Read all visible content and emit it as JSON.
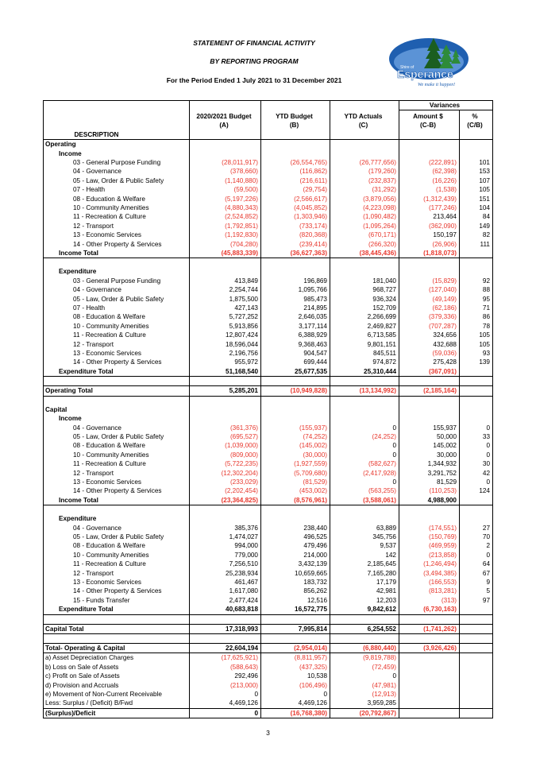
{
  "header": {
    "title": "STATEMENT OF FINANCIAL ACTIVITY",
    "subtitle": "BY REPORTING PROGRAM",
    "period": "For the Period Ended 1 July 2021 to 31 December 2021"
  },
  "logo": {
    "name": "Esperance",
    "prefix": "Shire of",
    "tagline": "We make it happen!",
    "colors": {
      "blue": "#1f5fb0",
      "green": "#2e8b3a",
      "dark_green": "#1b5e20"
    }
  },
  "colors": {
    "negative": "#e8382e",
    "text": "#000000"
  },
  "columns": {
    "variances_label": "Variances",
    "description": "DESCRIPTION",
    "budget": "2020/2021 Budget",
    "budget_code": "(A)",
    "ytd_budget": "YTD Budget",
    "ytd_budget_code": "(B)",
    "ytd_actuals": "YTD Actuals",
    "ytd_actuals_code": "(C)",
    "amount": "Amount $",
    "amount_code": "(C-B)",
    "pct": "%",
    "pct_code": "(C/B)"
  },
  "rows": [
    {
      "type": "section",
      "label": "Operating",
      "level": 0
    },
    {
      "type": "sub",
      "label": "Income",
      "level": 1
    },
    {
      "type": "item",
      "level": 2,
      "label": "03 - General Purpose Funding",
      "a": "(28,011,917)",
      "b": "(26,554,765)",
      "c": "(26,777,656)",
      "d": "(222,891)",
      "e": "101"
    },
    {
      "type": "item",
      "level": 2,
      "label": "04 - Governance",
      "a": "(378,660)",
      "b": "(116,862)",
      "c": "(179,260)",
      "d": "(62,398)",
      "e": "153"
    },
    {
      "type": "item",
      "level": 2,
      "label": "05 - Law, Order & Public Safety",
      "a": "(1,140,880)",
      "b": "(216,611)",
      "c": "(232,837)",
      "d": "(16,226)",
      "e": "107"
    },
    {
      "type": "item",
      "level": 2,
      "label": "07 - Health",
      "a": "(59,500)",
      "b": "(29,754)",
      "c": "(31,292)",
      "d": "(1,538)",
      "e": "105"
    },
    {
      "type": "item",
      "level": 2,
      "label": "08 - Education & Welfare",
      "a": "(5,197,226)",
      "b": "(2,566,617)",
      "c": "(3,879,056)",
      "d": "(1,312,439)",
      "e": "151"
    },
    {
      "type": "item",
      "level": 2,
      "label": "10 - Community Amenities",
      "a": "(4,880,343)",
      "b": "(4,045,852)",
      "c": "(4,223,098)",
      "d": "(177,246)",
      "e": "104"
    },
    {
      "type": "item",
      "level": 2,
      "label": "11 - Recreation & Culture",
      "a": "(2,524,852)",
      "b": "(1,303,946)",
      "c": "(1,090,482)",
      "d": "213,464",
      "e": "84"
    },
    {
      "type": "item",
      "level": 2,
      "label": "12 - Transport",
      "a": "(1,792,851)",
      "b": "(733,174)",
      "c": "(1,095,264)",
      "d": "(362,090)",
      "e": "149"
    },
    {
      "type": "item",
      "level": 2,
      "label": "13 - Economic Services",
      "a": "(1,192,830)",
      "b": "(820,368)",
      "c": "(670,171)",
      "d": "150,197",
      "e": "82"
    },
    {
      "type": "item",
      "level": 2,
      "label": "14 - Other Property & Services",
      "a": "(704,280)",
      "b": "(239,414)",
      "c": "(266,320)",
      "d": "(26,906)",
      "e": "111"
    },
    {
      "type": "total",
      "level": 1,
      "label": "Income Total",
      "a": "(45,883,339)",
      "b": "(36,627,363)",
      "c": "(38,445,436)",
      "d": "(1,818,073)",
      "e": ""
    },
    {
      "type": "gap"
    },
    {
      "type": "sub",
      "label": "Expenditure",
      "level": 1
    },
    {
      "type": "item",
      "level": 2,
      "label": "03 - General Purpose Funding",
      "a": "413,849",
      "b": "196,869",
      "c": "181,040",
      "d": "(15,829)",
      "e": "92"
    },
    {
      "type": "item",
      "level": 2,
      "label": "04 - Governance",
      "a": "2,254,744",
      "b": "1,095,766",
      "c": "968,727",
      "d": "(127,040)",
      "e": "88"
    },
    {
      "type": "item",
      "level": 2,
      "label": "05 - Law, Order & Public Safety",
      "a": "1,875,500",
      "b": "985,473",
      "c": "936,324",
      "d": "(49,149)",
      "e": "95"
    },
    {
      "type": "item",
      "level": 2,
      "label": "07 - Health",
      "a": "427,143",
      "b": "214,895",
      "c": "152,709",
      "d": "(62,186)",
      "e": "71"
    },
    {
      "type": "item",
      "level": 2,
      "label": "08 - Education & Welfare",
      "a": "5,727,252",
      "b": "2,646,035",
      "c": "2,266,699",
      "d": "(379,336)",
      "e": "86"
    },
    {
      "type": "item",
      "level": 2,
      "label": "10 - Community Amenities",
      "a": "5,913,856",
      "b": "3,177,114",
      "c": "2,469,827",
      "d": "(707,287)",
      "e": "78"
    },
    {
      "type": "item",
      "level": 2,
      "label": "11 - Recreation & Culture",
      "a": "12,807,424",
      "b": "6,388,929",
      "c": "6,713,585",
      "d": "324,656",
      "e": "105"
    },
    {
      "type": "item",
      "level": 2,
      "label": "12 - Transport",
      "a": "18,596,044",
      "b": "9,368,463",
      "c": "9,801,151",
      "d": "432,688",
      "e": "105"
    },
    {
      "type": "item",
      "level": 2,
      "label": "13 - Economic Services",
      "a": "2,196,756",
      "b": "904,547",
      "c": "845,511",
      "d": "(59,036)",
      "e": "93"
    },
    {
      "type": "item",
      "level": 2,
      "label": "14 - Other Property & Services",
      "a": "955,972",
      "b": "699,444",
      "c": "974,872",
      "d": "275,428",
      "e": "139"
    },
    {
      "type": "total",
      "level": 1,
      "label": "Expenditure Total",
      "a": "51,168,540",
      "b": "25,677,535",
      "c": "25,310,444",
      "d": "(367,091)",
      "e": ""
    },
    {
      "type": "gap"
    },
    {
      "type": "grand",
      "level": 0,
      "label": "Operating Total",
      "a": "5,285,201",
      "b": "(10,949,828)",
      "c": "(13,134,992)",
      "d": "(2,185,164)",
      "e": ""
    },
    {
      "type": "gap"
    },
    {
      "type": "section",
      "label": "Capital",
      "level": 0
    },
    {
      "type": "sub",
      "label": "Income",
      "level": 1
    },
    {
      "type": "item",
      "level": 2,
      "label": "04 - Governance",
      "a": "(361,376)",
      "b": "(155,937)",
      "c": "0",
      "d": "155,937",
      "e": "0"
    },
    {
      "type": "item",
      "level": 2,
      "label": "05 - Law, Order & Public Safety",
      "a": "(695,527)",
      "b": "(74,252)",
      "c": "(24,252)",
      "d": "50,000",
      "e": "33"
    },
    {
      "type": "item",
      "level": 2,
      "label": "08 - Education & Welfare",
      "a": "(1,039,000)",
      "b": "(145,002)",
      "c": "0",
      "d": "145,002",
      "e": "0"
    },
    {
      "type": "item",
      "level": 2,
      "label": "10 - Community Amenities",
      "a": "(809,000)",
      "b": "(30,000)",
      "c": "0",
      "d": "30,000",
      "e": "0"
    },
    {
      "type": "item",
      "level": 2,
      "label": "11 - Recreation & Culture",
      "a": "(5,722,235)",
      "b": "(1,927,559)",
      "c": "(582,627)",
      "d": "1,344,932",
      "e": "30"
    },
    {
      "type": "item",
      "level": 2,
      "label": "12 - Transport",
      "a": "(12,302,204)",
      "b": "(5,709,680)",
      "c": "(2,417,928)",
      "d": "3,291,752",
      "e": "42"
    },
    {
      "type": "item",
      "level": 2,
      "label": "13 - Economic Services",
      "a": "(233,029)",
      "b": "(81,529)",
      "c": "0",
      "d": "81,529",
      "e": "0"
    },
    {
      "type": "item",
      "level": 2,
      "label": "14 - Other Property & Services",
      "a": "(2,202,454)",
      "b": "(453,002)",
      "c": "(563,255)",
      "d": "(110,253)",
      "e": "124"
    },
    {
      "type": "total",
      "level": 1,
      "label": "Income Total",
      "a": "(23,364,825)",
      "b": "(8,576,961)",
      "c": "(3,588,061)",
      "d": "4,988,900",
      "e": ""
    },
    {
      "type": "gap"
    },
    {
      "type": "sub",
      "label": "Expenditure",
      "level": 1
    },
    {
      "type": "item",
      "level": 2,
      "label": "04 - Governance",
      "a": "385,376",
      "b": "238,440",
      "c": "63,889",
      "d": "(174,551)",
      "e": "27"
    },
    {
      "type": "item",
      "level": 2,
      "label": "05 - Law, Order & Public Safety",
      "a": "1,474,027",
      "b": "496,525",
      "c": "345,756",
      "d": "(150,769)",
      "e": "70"
    },
    {
      "type": "item",
      "level": 2,
      "label": "08 - Education & Welfare",
      "a": "994,000",
      "b": "479,496",
      "c": "9,537",
      "d": "(469,959)",
      "e": "2"
    },
    {
      "type": "item",
      "level": 2,
      "label": "10 - Community Amenities",
      "a": "779,000",
      "b": "214,000",
      "c": "142",
      "d": "(213,858)",
      "e": "0"
    },
    {
      "type": "item",
      "level": 2,
      "label": "11 - Recreation & Culture",
      "a": "7,256,510",
      "b": "3,432,139",
      "c": "2,185,645",
      "d": "(1,246,494)",
      "e": "64"
    },
    {
      "type": "item",
      "level": 2,
      "label": "12 - Transport",
      "a": "25,238,934",
      "b": "10,659,665",
      "c": "7,165,280",
      "d": "(3,494,385)",
      "e": "67"
    },
    {
      "type": "item",
      "level": 2,
      "label": "13 - Economic Services",
      "a": "461,467",
      "b": "183,732",
      "c": "17,179",
      "d": "(166,553)",
      "e": "9"
    },
    {
      "type": "item",
      "level": 2,
      "label": "14 - Other Property & Services",
      "a": "1,617,080",
      "b": "856,262",
      "c": "42,981",
      "d": "(813,281)",
      "e": "5"
    },
    {
      "type": "item",
      "level": 2,
      "label": "15 - Funds Transfer",
      "a": "2,477,424",
      "b": "12,516",
      "c": "12,203",
      "d": "(313)",
      "e": "97"
    },
    {
      "type": "total",
      "level": 1,
      "label": "Expenditure Total",
      "a": "40,683,818",
      "b": "16,572,775",
      "c": "9,842,612",
      "d": "(6,730,163)",
      "e": ""
    },
    {
      "type": "gap"
    },
    {
      "type": "grand",
      "level": 0,
      "label": "Capital Total",
      "a": "17,318,993",
      "b": "7,995,814",
      "c": "6,254,552",
      "d": "(1,741,262)",
      "e": ""
    },
    {
      "type": "gap"
    },
    {
      "type": "grand",
      "level": 0,
      "label": "Total- Operating & Capital",
      "a": "22,604,194",
      "b": "(2,954,014)",
      "c": "(6,880,440)",
      "d": "(3,926,426)",
      "e": ""
    },
    {
      "type": "adj",
      "level": 0,
      "label": "a) Asset Depreciation Charges",
      "a": "(17,625,921)",
      "b": "(8,811,957)",
      "c": "(9,819,788)",
      "d": "",
      "e": ""
    },
    {
      "type": "adj",
      "level": 0,
      "label": "b) Loss on Sale of Assets",
      "a": "(588,643)",
      "b": "(437,325)",
      "c": "(72,459)",
      "d": "",
      "e": ""
    },
    {
      "type": "adj",
      "level": 0,
      "label": "c) Profit on Sale of Assets",
      "a": "292,496",
      "b": "10,538",
      "c": "0",
      "d": "",
      "e": ""
    },
    {
      "type": "adj",
      "level": 0,
      "label": "d) Provision and Accruals",
      "a": "(213,000)",
      "b": "(106,496)",
      "c": "(47,981)",
      "d": "",
      "e": ""
    },
    {
      "type": "adj",
      "level": 0,
      "label": "e) Movement of Non-Current Receivable",
      "a": "0",
      "b": "0",
      "c": "(12,913)",
      "d": "",
      "e": ""
    },
    {
      "type": "adj",
      "level": 0,
      "label": "Less: Surplus / (Deficit) B/Fwd",
      "a": "4,469,126",
      "b": "4,469,126",
      "c": "3,959,285",
      "d": "",
      "e": ""
    },
    {
      "type": "final",
      "level": 0,
      "label": "(Surplus)/Deficit",
      "a": "0",
      "b": "(16,768,380)",
      "c": "(20,792,867)",
      "d": "",
      "e": ""
    }
  ],
  "footer": {
    "page_number": "3"
  }
}
